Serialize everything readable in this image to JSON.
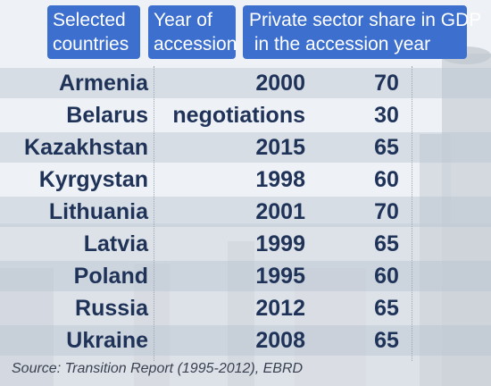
{
  "chart_data": {
    "type": "table",
    "columns": [
      "Selected countries",
      "Year of accession",
      "Private sector share in GDP in the accession year"
    ],
    "rows": [
      {
        "country": "Armenia",
        "year": "2000",
        "share": 70
      },
      {
        "country": "Belarus",
        "year": "negotiations",
        "share": 30
      },
      {
        "country": "Kazakhstan",
        "year": "2015",
        "share": 65
      },
      {
        "country": "Kyrgystan",
        "year": "1998",
        "share": 60
      },
      {
        "country": "Lithuania",
        "year": "2001",
        "share": 70
      },
      {
        "country": "Latvia",
        "year": "1999",
        "share": 65
      },
      {
        "country": "Poland",
        "year": "1995",
        "share": 60
      },
      {
        "country": "Russia",
        "year": "2012",
        "share": 65
      },
      {
        "country": "Ukraine",
        "year": "2008",
        "share": 65
      }
    ]
  },
  "headers": {
    "country_line1": "Selected",
    "country_line2": "countries",
    "year_line1": "Year of",
    "year_line2": "accession",
    "share_line1": "Private sector share in GDP",
    "share_line2": " in the accession year"
  },
  "source": "Source: Transition Report (1995-2012), EBRD",
  "colors": {
    "header_bg": "#3d6fce",
    "header_text": "#ffffff",
    "cell_text": "#1f3258",
    "stripe": "#b4c0d0"
  }
}
